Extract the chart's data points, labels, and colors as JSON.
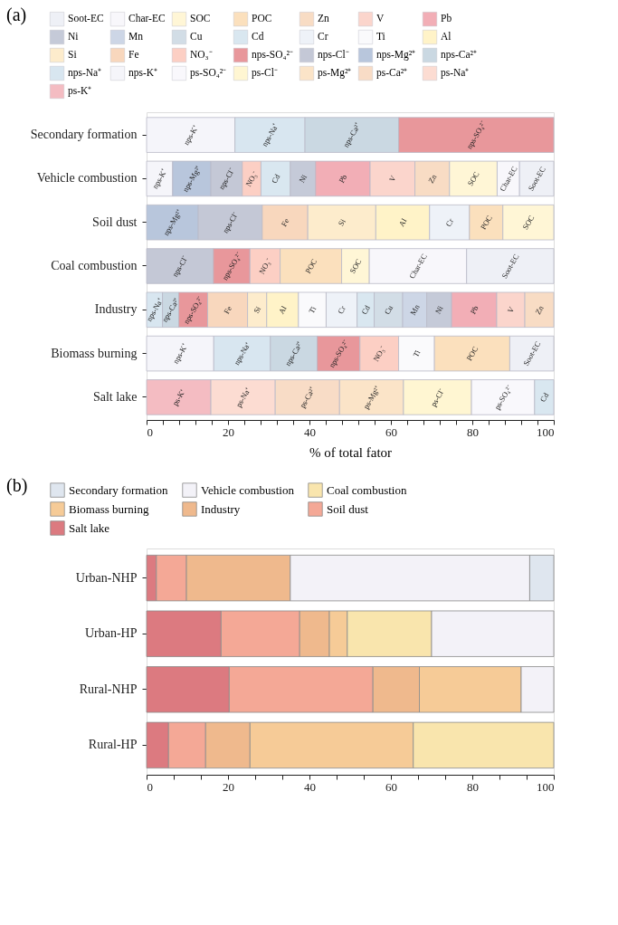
{
  "chart_data": [
    {
      "type": "bar",
      "orientation": "horizontal",
      "stacked": true,
      "title": "(a)",
      "xlabel": "% of total fator",
      "legend": "top",
      "categories": [
        "Secondary formation",
        "Vehicle combustion",
        "Soil dust",
        "Coal combustion",
        "Industry",
        "Biomass burning",
        "Salt lake"
      ],
      "xlim": [
        0,
        100
      ],
      "xticks": [
        0,
        {
          "value": 4,
          "label": null
        },
        {
          "value": 8,
          "label": null
        },
        {
          "value": 12,
          "label": null
        },
        {
          "value": 16,
          "label": null
        },
        20,
        {
          "value": 24,
          "label": null
        },
        {
          "value": 28,
          "label": null
        },
        {
          "value": 32,
          "label": null
        },
        {
          "value": 36,
          "label": null
        },
        40,
        {
          "value": 44,
          "label": null
        },
        {
          "value": 48,
          "label": null
        },
        {
          "value": 52,
          "label": null
        },
        {
          "value": 56,
          "label": null
        },
        60,
        {
          "value": 64,
          "label": null
        },
        {
          "value": 68,
          "label": null
        },
        {
          "value": 72,
          "label": null
        },
        {
          "value": 76,
          "label": null
        },
        80,
        {
          "value": 84,
          "label": null
        },
        {
          "value": 88,
          "label": null
        },
        {
          "value": 92,
          "label": null
        },
        {
          "value": 96,
          "label": null
        },
        100
      ],
      "series": [
        {
          "name": "ps-K⁺",
          "color": "#f4bcc2",
          "values": [
            null,
            null,
            null,
            null,
            null,
            null,
            15.8
          ]
        },
        {
          "name": "ps-Na⁺",
          "color": "#fcdcd2",
          "values": [
            null,
            null,
            null,
            null,
            null,
            null,
            15.8
          ]
        },
        {
          "name": "ps-Ca²⁺",
          "color": "#f8dcc6",
          "values": [
            null,
            null,
            null,
            null,
            null,
            null,
            15.8
          ]
        },
        {
          "name": "ps-Mg²⁺",
          "color": "#fbe4c8",
          "values": [
            null,
            null,
            null,
            null,
            null,
            null,
            15.7
          ]
        },
        {
          "name": "ps-Cl⁻",
          "color": "#fff6d2",
          "values": [
            null,
            null,
            null,
            null,
            null,
            null,
            16.7
          ]
        },
        {
          "name": "ps-SO₄²⁻",
          "color": "#f9f8fc",
          "values": [
            null,
            null,
            null,
            null,
            null,
            null,
            15.5
          ]
        },
        {
          "name": "nps-K⁺",
          "color": "#f5f5fa",
          "values": [
            21.7,
            6.4,
            null,
            null,
            null,
            16.5,
            null
          ]
        },
        {
          "name": "nps-Na⁺",
          "color": "#d8e6f0",
          "values": [
            17.2,
            null,
            null,
            null,
            3.9,
            13.9,
            null
          ]
        },
        {
          "name": "nps-Ca²⁺",
          "color": "#cad8e2",
          "values": [
            23.0,
            null,
            null,
            null,
            4.0,
            11.5,
            null
          ]
        },
        {
          "name": "nps-Mg²⁺",
          "color": "#b8c6dc",
          "values": [
            null,
            9.4,
            12.7,
            null,
            null,
            null,
            null
          ]
        },
        {
          "name": "nps-Cl⁻",
          "color": "#c4c8d6",
          "values": [
            null,
            7.7,
            15.7,
            16.4,
            null,
            null,
            null
          ]
        },
        {
          "name": "nps-SO₄²⁻",
          "color": "#e8979b",
          "values": [
            38.1,
            null,
            null,
            9.0,
            7.1,
            10.5,
            null
          ]
        },
        {
          "name": "NO₃⁻",
          "color": "#fccfc4",
          "values": [
            null,
            4.6,
            null,
            7.4,
            null,
            9.5,
            null
          ]
        },
        {
          "name": "Fe",
          "color": "#f8d7bd",
          "values": [
            null,
            null,
            11.2,
            null,
            9.8,
            null,
            null
          ]
        },
        {
          "name": "Si",
          "color": "#fdeccc",
          "values": [
            null,
            null,
            16.7,
            null,
            4.7,
            null,
            null
          ]
        },
        {
          "name": "Al",
          "color": "#fff3c8",
          "values": [
            null,
            null,
            13.2,
            null,
            7.8,
            null,
            null
          ]
        },
        {
          "name": "Ti",
          "color": "#fafafc",
          "values": [
            null,
            null,
            null,
            null,
            6.8,
            8.8,
            null
          ]
        },
        {
          "name": "Cr",
          "color": "#eef2f8",
          "values": [
            null,
            null,
            9.8,
            null,
            7.6,
            null,
            null
          ]
        },
        {
          "name": "Cd",
          "color": "#d9e7f0",
          "values": [
            null,
            7.2,
            null,
            null,
            4.2,
            null,
            4.7
          ]
        },
        {
          "name": "Cu",
          "color": "#d2dde6",
          "values": [
            null,
            null,
            null,
            null,
            7.0,
            null,
            null
          ]
        },
        {
          "name": "Mn",
          "color": "#cdd6e6",
          "values": [
            null,
            null,
            null,
            null,
            5.9,
            null,
            null
          ]
        },
        {
          "name": "Ni",
          "color": "#c5cad8",
          "values": [
            null,
            6.2,
            null,
            null,
            6.1,
            null,
            null
          ]
        },
        {
          "name": "Pb",
          "color": "#f2aeb6",
          "values": [
            null,
            13.4,
            null,
            null,
            11.1,
            null,
            null
          ]
        },
        {
          "name": "V",
          "color": "#fbd5cc",
          "values": [
            null,
            11.0,
            null,
            null,
            6.9,
            null,
            null
          ]
        },
        {
          "name": "Zn",
          "color": "#f8dcc4",
          "values": [
            null,
            8.5,
            null,
            null,
            7.1,
            null,
            null
          ]
        },
        {
          "name": "POC",
          "color": "#fbe0bd",
          "values": [
            null,
            null,
            8.2,
            15.1,
            null,
            18.5,
            null
          ]
        },
        {
          "name": "SOC",
          "color": "#fff6d6",
          "values": [
            null,
            11.7,
            12.5,
            6.8,
            null,
            null,
            null
          ]
        },
        {
          "name": "Char-EC",
          "color": "#f8f7fb",
          "values": [
            null,
            5.5,
            null,
            23.9,
            null,
            null,
            null
          ]
        },
        {
          "name": "Soot-EC",
          "color": "#eef0f6",
          "values": [
            null,
            8.4,
            null,
            21.4,
            null,
            10.8,
            null
          ]
        }
      ]
    },
    {
      "type": "bar",
      "orientation": "horizontal",
      "stacked": true,
      "title": "(b)",
      "legend": "top",
      "categories": [
        "Urban-NHP",
        "Urban-HP",
        "Rural-NHP",
        "Rural-HP"
      ],
      "xlim": [
        0,
        100
      ],
      "xticks": [
        0,
        {
          "value": 6.67,
          "label": null
        },
        {
          "value": 13.33,
          "label": null
        },
        20,
        {
          "value": 26.67,
          "label": null
        },
        {
          "value": 33.33,
          "label": null
        },
        40,
        {
          "value": 46.67,
          "label": null
        },
        {
          "value": 53.33,
          "label": null
        },
        60,
        {
          "value": 66.67,
          "label": null
        },
        {
          "value": 73.33,
          "label": null
        },
        80,
        {
          "value": 86.67,
          "label": null
        },
        {
          "value": 93.33,
          "label": null
        },
        100
      ],
      "series": [
        {
          "name": "Salt lake",
          "color": "#dc7a80",
          "values": [
            2.4,
            18.3,
            20.3,
            5.4
          ]
        },
        {
          "name": "Soil dust",
          "color": "#f4a896",
          "values": [
            7.4,
            19.3,
            35.3,
            9.1
          ]
        },
        {
          "name": "Industry",
          "color": "#efb98d",
          "values": [
            25.5,
            7.3,
            11.4,
            10.9
          ]
        },
        {
          "name": "Biomass burning",
          "color": "#f6cb97",
          "values": [
            null,
            4.4,
            25.0,
            40.1
          ]
        },
        {
          "name": "Coal combustion",
          "color": "#f9e5ad",
          "values": [
            null,
            20.7,
            null,
            34.5
          ]
        },
        {
          "name": "Vehicle combustion",
          "color": "#f3f2f8",
          "values": [
            58.8,
            30.0,
            8.0,
            null
          ]
        },
        {
          "name": "Secondary formation",
          "color": "#dfe6ef",
          "values": [
            5.9,
            null,
            null,
            null
          ]
        }
      ]
    }
  ]
}
